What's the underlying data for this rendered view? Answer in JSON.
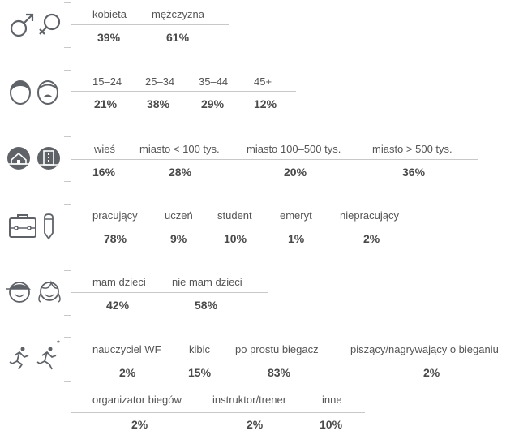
{
  "groups": [
    {
      "icon": [
        "male-symbol-icon",
        "female-symbol-icon"
      ],
      "rows": [
        {
          "labels": [
            "kobieta",
            "mężczyzna"
          ],
          "values": [
            "39%",
            "61%"
          ]
        }
      ]
    },
    {
      "icon": [
        "young-man-face-icon",
        "old-man-face-icon"
      ],
      "rows": [
        {
          "labels": [
            "15–24",
            "25–34",
            "35–44",
            "45+"
          ],
          "values": [
            "21%",
            "38%",
            "29%",
            "12%"
          ]
        }
      ]
    },
    {
      "icon": [
        "house-icon",
        "city-building-icon"
      ],
      "rows": [
        {
          "labels": [
            "wieś",
            "miasto < 100 tys.",
            "miasto 100–500 tys.",
            "miasto > 500 tys."
          ],
          "values": [
            "16%",
            "28%",
            "20%",
            "36%"
          ]
        }
      ]
    },
    {
      "icon": [
        "briefcase-icon",
        "pencil-icon"
      ],
      "rows": [
        {
          "labels": [
            "pracujący",
            "uczeń",
            "student",
            "emeryt",
            "niepracujący"
          ],
          "values": [
            "78%",
            "9%",
            "10%",
            "1%",
            "2%"
          ]
        }
      ]
    },
    {
      "icon": [
        "boy-face-icon",
        "girl-face-icon"
      ],
      "rows": [
        {
          "labels": [
            "mam dzieci",
            "nie mam dzieci"
          ],
          "values": [
            "42%",
            "58%"
          ]
        }
      ]
    },
    {
      "icon": [
        "runner-icon",
        "runner-asterisk-icon"
      ],
      "asterisk": "*",
      "rows": [
        {
          "labels": [
            "nauczyciel WF",
            "kibic",
            "po prostu biegacz",
            "piszący/nagrywający o bieganiu"
          ],
          "values": [
            "2%",
            "15%",
            "83%",
            "2%"
          ]
        },
        {
          "labels": [
            "organizator biegów",
            "instruktor/trener",
            "inne"
          ],
          "values": [
            "2%",
            "2%",
            "10%"
          ]
        }
      ]
    }
  ],
  "colors": {
    "text": "#555555",
    "values": "#4a4a4a",
    "lines": "#c8c8c8",
    "icons": "#5f6368"
  }
}
